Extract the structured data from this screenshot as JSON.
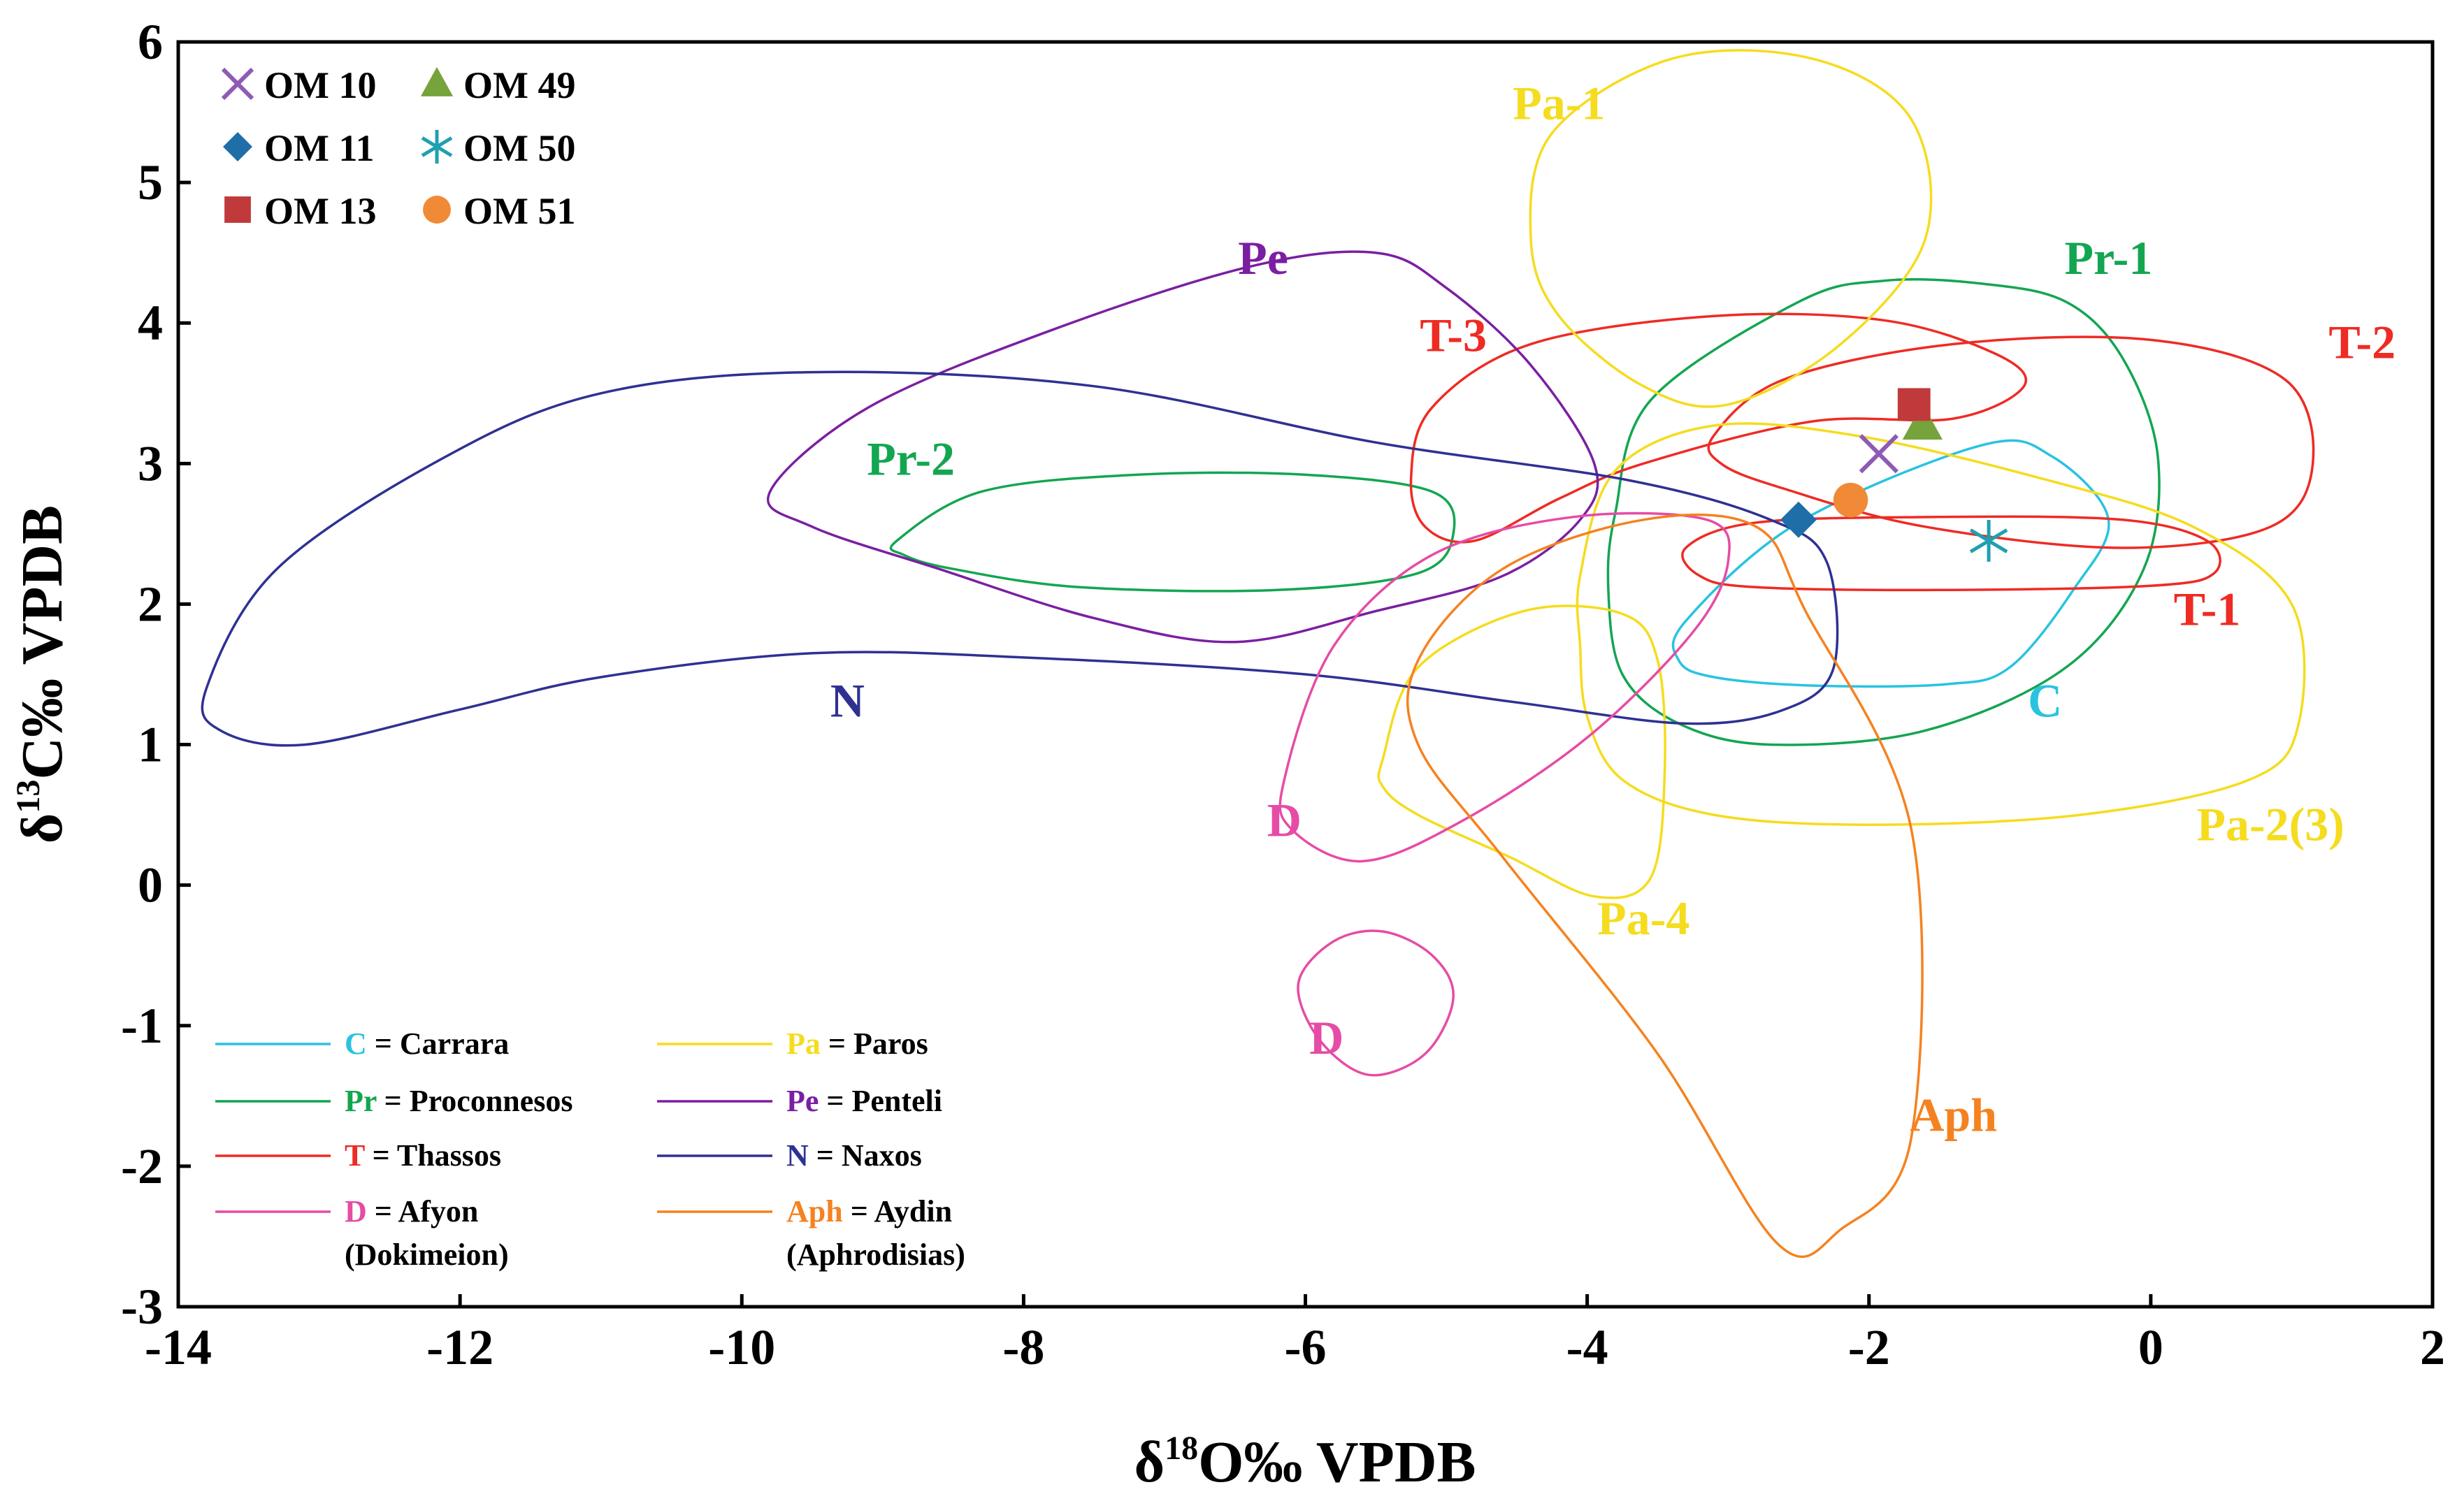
{
  "chart_data": {
    "type": "scatter",
    "x_label_parts": [
      "δ",
      "18",
      "O‰ VPDB"
    ],
    "y_label_parts": [
      "δ",
      "13",
      "C‰ VPDB"
    ],
    "xlim": [
      -14,
      2
    ],
    "ylim": [
      -3,
      6
    ],
    "x_ticks": [
      -14,
      -12,
      -10,
      -8,
      -6,
      -4,
      -2,
      0,
      2
    ],
    "y_ticks": [
      -3,
      -2,
      -1,
      0,
      1,
      2,
      3,
      4,
      5,
      6
    ],
    "colors": {
      "C": "#29c3e0",
      "Pr": "#13a651",
      "T": "#ee2b24",
      "Pa": "#f5dc1e",
      "Pe": "#7b1fa2",
      "N": "#2e3192",
      "D": "#e64ca5",
      "Aph": "#f58220"
    },
    "samples": [
      {
        "label": "OM 10",
        "marker": "x",
        "color": "#8e5bb4",
        "x": -1.93,
        "y": 3.07
      },
      {
        "label": "OM 49",
        "marker": "triangle",
        "color": "#76a33b",
        "x": -1.62,
        "y": 3.28
      },
      {
        "label": "OM 11",
        "marker": "diamond",
        "color": "#1f6ea8",
        "x": -2.5,
        "y": 2.6
      },
      {
        "label": "OM 50",
        "marker": "asterisk",
        "color": "#1fa0b0",
        "x": -1.15,
        "y": 2.45
      },
      {
        "label": "OM 13",
        "marker": "square",
        "color": "#c0393b",
        "x": -1.68,
        "y": 3.42
      },
      {
        "label": "OM 51",
        "marker": "circle",
        "color": "#f08a36",
        "x": -2.13,
        "y": 2.74
      }
    ],
    "fields": [
      {
        "name": "C",
        "color_key": "C",
        "points": [
          [
            -3.3,
            1.88
          ],
          [
            -2.5,
            2.58
          ],
          [
            -1.2,
            3.13
          ],
          [
            -0.7,
            3.05
          ],
          [
            -0.3,
            2.6
          ],
          [
            -0.55,
            2.1
          ],
          [
            -1.0,
            1.55
          ],
          [
            -1.45,
            1.43
          ],
          [
            -2.4,
            1.42
          ],
          [
            -3.1,
            1.48
          ],
          [
            -3.35,
            1.6
          ]
        ]
      },
      {
        "name": "Pr-1",
        "color_key": "Pr",
        "points": [
          [
            -3.85,
            2.1
          ],
          [
            -3.8,
            2.65
          ],
          [
            -3.55,
            3.45
          ],
          [
            -2.5,
            4.15
          ],
          [
            -1.9,
            4.3
          ],
          [
            -1.2,
            4.28
          ],
          [
            -0.6,
            4.15
          ],
          [
            -0.2,
            3.75
          ],
          [
            0.05,
            3.05
          ],
          [
            -0.05,
            2.25
          ],
          [
            -0.6,
            1.55
          ],
          [
            -1.6,
            1.1
          ],
          [
            -2.7,
            1.0
          ],
          [
            -3.35,
            1.15
          ],
          [
            -3.75,
            1.5
          ]
        ]
      },
      {
        "name": "Pr-2",
        "color_key": "Pr",
        "points": [
          [
            -8.9,
            2.45
          ],
          [
            -8.3,
            2.8
          ],
          [
            -7.2,
            2.92
          ],
          [
            -6.0,
            2.92
          ],
          [
            -5.1,
            2.8
          ],
          [
            -4.95,
            2.5
          ],
          [
            -5.2,
            2.22
          ],
          [
            -6.2,
            2.1
          ],
          [
            -7.6,
            2.12
          ],
          [
            -8.5,
            2.25
          ],
          [
            -8.85,
            2.35
          ]
        ]
      },
      {
        "name": "T-1",
        "color_key": "T",
        "points": [
          [
            -3.3,
            2.4
          ],
          [
            -2.8,
            2.58
          ],
          [
            -1.5,
            2.62
          ],
          [
            -0.2,
            2.6
          ],
          [
            0.4,
            2.45
          ],
          [
            0.45,
            2.22
          ],
          [
            0.0,
            2.13
          ],
          [
            -1.5,
            2.1
          ],
          [
            -2.8,
            2.12
          ],
          [
            -3.2,
            2.2
          ]
        ]
      },
      {
        "name": "T-2",
        "color_key": "T",
        "points": [
          [
            -3.1,
            3.2
          ],
          [
            -2.6,
            3.6
          ],
          [
            -1.4,
            3.85
          ],
          [
            0.0,
            3.88
          ],
          [
            0.95,
            3.6
          ],
          [
            1.15,
            3.0
          ],
          [
            0.85,
            2.55
          ],
          [
            -0.2,
            2.4
          ],
          [
            -1.6,
            2.55
          ],
          [
            -2.6,
            2.82
          ],
          [
            -3.05,
            3.0
          ]
        ]
      },
      {
        "name": "T-3",
        "color_key": "T",
        "points": [
          [
            -5.25,
            2.9
          ],
          [
            -5.1,
            3.4
          ],
          [
            -4.4,
            3.85
          ],
          [
            -3.1,
            4.05
          ],
          [
            -1.9,
            4.02
          ],
          [
            -1.1,
            3.78
          ],
          [
            -0.9,
            3.55
          ],
          [
            -1.4,
            3.32
          ],
          [
            -2.4,
            3.3
          ],
          [
            -3.6,
            3.0
          ],
          [
            -4.2,
            2.75
          ],
          [
            -4.8,
            2.45
          ],
          [
            -5.15,
            2.55
          ]
        ]
      },
      {
        "name": "Pa-1",
        "color_key": "Pa",
        "points": [
          [
            -4.4,
            4.6
          ],
          [
            -4.25,
            5.35
          ],
          [
            -3.4,
            5.88
          ],
          [
            -2.4,
            5.88
          ],
          [
            -1.7,
            5.45
          ],
          [
            -1.6,
            4.6
          ],
          [
            -2.2,
            3.85
          ],
          [
            -3.0,
            3.42
          ],
          [
            -3.6,
            3.55
          ],
          [
            -4.2,
            4.05
          ]
        ]
      },
      {
        "name": "Pa-2(3)",
        "color_key": "Pa",
        "points": [
          [
            -4.05,
            2.2
          ],
          [
            -3.8,
            2.95
          ],
          [
            -3.1,
            3.27
          ],
          [
            -2.1,
            3.2
          ],
          [
            -0.8,
            2.9
          ],
          [
            0.3,
            2.55
          ],
          [
            1.0,
            2.0
          ],
          [
            1.05,
            1.15
          ],
          [
            0.7,
            0.75
          ],
          [
            -0.5,
            0.5
          ],
          [
            -2.0,
            0.43
          ],
          [
            -3.1,
            0.5
          ],
          [
            -3.75,
            0.75
          ],
          [
            -4.0,
            1.2
          ],
          [
            -4.05,
            1.7
          ]
        ]
      },
      {
        "name": "Pa-4",
        "color_key": "Pa",
        "points": [
          [
            -5.45,
            0.9
          ],
          [
            -5.2,
            1.55
          ],
          [
            -4.45,
            1.95
          ],
          [
            -3.75,
            1.93
          ],
          [
            -3.5,
            1.6
          ],
          [
            -3.45,
            0.8
          ],
          [
            -3.55,
            0.05
          ],
          [
            -3.95,
            -0.08
          ],
          [
            -4.55,
            0.2
          ],
          [
            -5.2,
            0.5
          ],
          [
            -5.45,
            0.7
          ]
        ]
      },
      {
        "name": "Pe",
        "color_key": "Pe",
        "points": [
          [
            -9.8,
            2.8
          ],
          [
            -9.1,
            3.4
          ],
          [
            -7.8,
            3.95
          ],
          [
            -6.4,
            4.4
          ],
          [
            -5.5,
            4.5
          ],
          [
            -5.0,
            4.25
          ],
          [
            -4.4,
            3.7
          ],
          [
            -3.95,
            3.0
          ],
          [
            -4.05,
            2.6
          ],
          [
            -4.6,
            2.2
          ],
          [
            -5.5,
            1.95
          ],
          [
            -6.5,
            1.73
          ],
          [
            -7.5,
            1.9
          ],
          [
            -8.6,
            2.25
          ],
          [
            -9.5,
            2.55
          ]
        ]
      },
      {
        "name": "N",
        "color_key": "N",
        "points": [
          [
            -13.8,
            1.4
          ],
          [
            -13.3,
            2.25
          ],
          [
            -12.1,
            3.05
          ],
          [
            -11.0,
            3.5
          ],
          [
            -9.5,
            3.65
          ],
          [
            -7.5,
            3.55
          ],
          [
            -5.5,
            3.15
          ],
          [
            -3.7,
            2.88
          ],
          [
            -2.7,
            2.6
          ],
          [
            -2.3,
            2.3
          ],
          [
            -2.25,
            1.55
          ],
          [
            -2.6,
            1.25
          ],
          [
            -3.3,
            1.15
          ],
          [
            -4.5,
            1.3
          ],
          [
            -6.0,
            1.5
          ],
          [
            -8.0,
            1.62
          ],
          [
            -9.5,
            1.65
          ],
          [
            -11.0,
            1.48
          ],
          [
            -12.0,
            1.25
          ],
          [
            -13.1,
            1.0
          ],
          [
            -13.7,
            1.1
          ]
        ]
      },
      {
        "name": "D-upper",
        "color_key": "D",
        "points": [
          [
            -6.15,
            0.75
          ],
          [
            -5.8,
            1.7
          ],
          [
            -5.1,
            2.35
          ],
          [
            -4.1,
            2.62
          ],
          [
            -3.15,
            2.6
          ],
          [
            -3.0,
            2.3
          ],
          [
            -3.25,
            1.8
          ],
          [
            -4.0,
            1.05
          ],
          [
            -4.9,
            0.45
          ],
          [
            -5.6,
            0.17
          ],
          [
            -6.1,
            0.4
          ]
        ]
      },
      {
        "name": "D-lower",
        "color_key": "D",
        "points": [
          [
            -6.05,
            -0.7
          ],
          [
            -5.8,
            -0.4
          ],
          [
            -5.45,
            -0.33
          ],
          [
            -5.1,
            -0.5
          ],
          [
            -4.95,
            -0.8
          ],
          [
            -5.15,
            -1.2
          ],
          [
            -5.55,
            -1.35
          ],
          [
            -5.9,
            -1.1
          ]
        ]
      },
      {
        "name": "Aph",
        "color_key": "Aph",
        "points": [
          [
            -5.2,
            1.6
          ],
          [
            -4.6,
            2.25
          ],
          [
            -3.6,
            2.6
          ],
          [
            -2.8,
            2.55
          ],
          [
            -2.45,
            1.95
          ],
          [
            -1.7,
            0.4
          ],
          [
            -1.7,
            -1.8
          ],
          [
            -2.2,
            -2.45
          ],
          [
            -2.65,
            -2.55
          ],
          [
            -3.5,
            -1.2
          ],
          [
            -4.6,
            0.2
          ],
          [
            -5.2,
            1.0
          ]
        ]
      }
    ],
    "zone_labels": [
      {
        "text": "Pa-1",
        "color_key": "Pa",
        "x": -4.2,
        "y": 5.45
      },
      {
        "text": "Pe",
        "color_key": "Pe",
        "x": -6.3,
        "y": 4.35
      },
      {
        "text": "Pr-1",
        "color_key": "Pr",
        "x": -0.3,
        "y": 4.35
      },
      {
        "text": "T-3",
        "color_key": "T",
        "x": -4.95,
        "y": 3.8
      },
      {
        "text": "T-2",
        "color_key": "T",
        "x": 1.5,
        "y": 3.75
      },
      {
        "text": "Pr-2",
        "color_key": "Pr",
        "x": -8.8,
        "y": 2.92
      },
      {
        "text": "T-1",
        "color_key": "T",
        "x": 0.4,
        "y": 1.85
      },
      {
        "text": "N",
        "color_key": "N",
        "x": -9.25,
        "y": 1.2
      },
      {
        "text": "C",
        "color_key": "C",
        "x": -0.75,
        "y": 1.2
      },
      {
        "text": "D",
        "color_key": "D",
        "x": -6.15,
        "y": 0.35
      },
      {
        "text": "Pa-2(3)",
        "color_key": "Pa",
        "x": 0.85,
        "y": 0.32
      },
      {
        "text": "Pa-4",
        "color_key": "Pa",
        "x": -3.6,
        "y": -0.35
      },
      {
        "text": "D",
        "color_key": "D",
        "x": -5.85,
        "y": -1.2
      },
      {
        "text": "Aph",
        "color_key": "Aph",
        "x": -1.4,
        "y": -1.75
      }
    ],
    "sample_legend_rows": [
      [
        "OM 10",
        "OM 49"
      ],
      [
        "OM 11",
        "OM 50"
      ],
      [
        "OM 13",
        "OM 51"
      ]
    ],
    "source_key": [
      {
        "abbr": "C",
        "color_key": "C",
        "rest": " = Carrara",
        "sub": ""
      },
      {
        "abbr": "Pa",
        "color_key": "Pa",
        "rest": " = Paros",
        "sub": ""
      },
      {
        "abbr": "Pr",
        "color_key": "Pr",
        "rest": " = Proconnesos",
        "sub": ""
      },
      {
        "abbr": "Pe",
        "color_key": "Pe",
        "rest": " = Penteli",
        "sub": ""
      },
      {
        "abbr": "T",
        "color_key": "T",
        "rest": " = Thassos",
        "sub": ""
      },
      {
        "abbr": "N",
        "color_key": "N",
        "rest": " = Naxos",
        "sub": ""
      },
      {
        "abbr": "D",
        "color_key": "D",
        "rest": " = Afyon",
        "sub": "(Dokimeion)"
      },
      {
        "abbr": "Aph",
        "color_key": "Aph",
        "rest": " = Aydin",
        "sub": "(Aphrodisias)"
      }
    ]
  }
}
